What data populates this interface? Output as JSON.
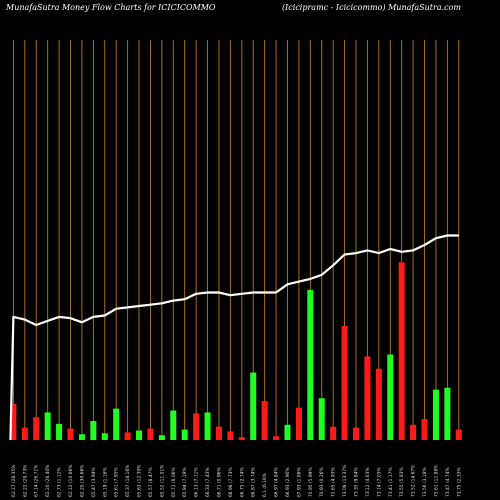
{
  "header": {
    "title": "MunafaSutra  Money Flow  Charts for ICICICOMMO",
    "subtitle": "(Icicipramc -  Icicicommo) MunafaSutra.com"
  },
  "colors": {
    "background": "#000000",
    "grid": "#b87a1c",
    "up": "#1fff1f",
    "down": "#ff1a1a",
    "line": "#ffffff"
  },
  "chart_data": {
    "type": "bar",
    "title": "MunafaSutra  Money Flow  Charts for ICICICOMMO",
    "xlabel": "",
    "ylabel": "",
    "grid": true,
    "categories": [
      "02 Jan 2026",
      "05 Jan 2026",
      "06 Jan 2026",
      "07 Jan 2026",
      "08 Jan 2026",
      "09 Jan 2026",
      "12 Jan 2026",
      "13 Jan 2026",
      "14 Jan 2026",
      "16 Jan 2026",
      "19 Jan 2026",
      "20 Jan 2026",
      "21 Jan 2026",
      "22 Jan 2026",
      "23 Jan 2026",
      "27 Jan 2026",
      "28 Jan 2026",
      "29 Jan 2026",
      "30 Jan 2026",
      "01 Feb 2026",
      "02 Feb 2026",
      "03 Feb 2026",
      "04 Feb 2026",
      "05 Feb 2026",
      "06 Feb 2026",
      "09 Feb 2026",
      "10 Feb 2026",
      "11 Feb 2026",
      "12 Feb 2026",
      "13 Feb 2026",
      "16 Feb 2026",
      "17 Feb 2026",
      "18 Feb 2026",
      "19 Feb 2026",
      "20 Feb 2026",
      "23 Feb 2026",
      "24 Feb 2026",
      "25 Feb 2026",
      "26 Feb 2026",
      "27 Feb 2026"
    ],
    "tick_labels": [
      "62.17 (28.35%",
      "62.22 (28.73%",
      "67.14 (26.71%",
      "62.20 (26.40%",
      "62.73 (1.12%",
      "62.12 (10.66%",
      "62.20 (30.66%",
      "65.47 (3.94%",
      "65.19 (1.16%",
      "65.61 (7.95%",
      "65.37 (18.16%",
      "65.63 (12.30%",
      "65.57 (8.47%",
      "65.52 (11.01%",
      "65.72 (8.06%",
      "65.94 (7.19%",
      "66.13 (7.11%",
      "66.33 (7.43%",
      "66.71 (0.96%",
      "66.98 (7.73%",
      "66.75 (2.74%",
      "66.87 (3.74%",
      "6.1 (6.16%",
      "66.97 (4.84%",
      "66.93 (2.90%",
      "67.93 (1.88%",
      "70.95 (5.99%",
      "70.93 (0.26%",
      "72.65 (4.93%",
      "73.08 (13.37%",
      "73.35 (9.84%",
      "73.12 (4.63%",
      "73.14 (7.03%",
      "73.41 (1.17%",
      "73.55 (5.83%",
      "73.52 (14.67%",
      "73.56 (3.18%",
      "73.61 (12.88%",
      "73.47 (4.74%",
      "73.75 (2.33%"
    ],
    "series": [
      {
        "kind": "bars",
        "values": [
          38,
          13,
          24,
          29,
          17,
          12,
          6,
          20,
          7,
          33,
          8,
          10,
          12,
          5,
          31,
          11,
          28,
          29,
          14,
          9,
          3,
          71,
          41,
          4,
          16,
          34,
          158,
          44,
          14,
          120,
          13,
          88,
          75,
          90,
          187,
          16,
          22,
          53,
          55,
          11
        ],
        "directions": [
          "down",
          "down",
          "down",
          "up",
          "up",
          "down",
          "up",
          "up",
          "up",
          "up",
          "down",
          "up",
          "down",
          "up",
          "up",
          "up",
          "down",
          "up",
          "down",
          "down",
          "down",
          "up",
          "down",
          "down",
          "up",
          "down",
          "up",
          "up",
          "down",
          "down",
          "down",
          "down",
          "down",
          "up",
          "down",
          "down",
          "down",
          "up",
          "up",
          "down"
        ]
      },
      {
        "kind": "line",
        "values": [
          63.5,
          63.3,
          62.9,
          63.2,
          63.5,
          63.4,
          63.1,
          63.5,
          63.6,
          64.1,
          64.2,
          64.3,
          64.4,
          64.5,
          64.7,
          64.8,
          65.2,
          65.3,
          65.3,
          65.1,
          65.2,
          65.3,
          65.3,
          65.3,
          65.9,
          66.1,
          66.3,
          66.6,
          67.3,
          68.1,
          68.2,
          68.4,
          68.2,
          68.5,
          68.3,
          68.4,
          68.8,
          69.3,
          69.5,
          69.5
        ]
      }
    ],
    "ylim_bars": [
      0,
      200
    ],
    "ylim_line": [
      50,
      73
    ]
  }
}
